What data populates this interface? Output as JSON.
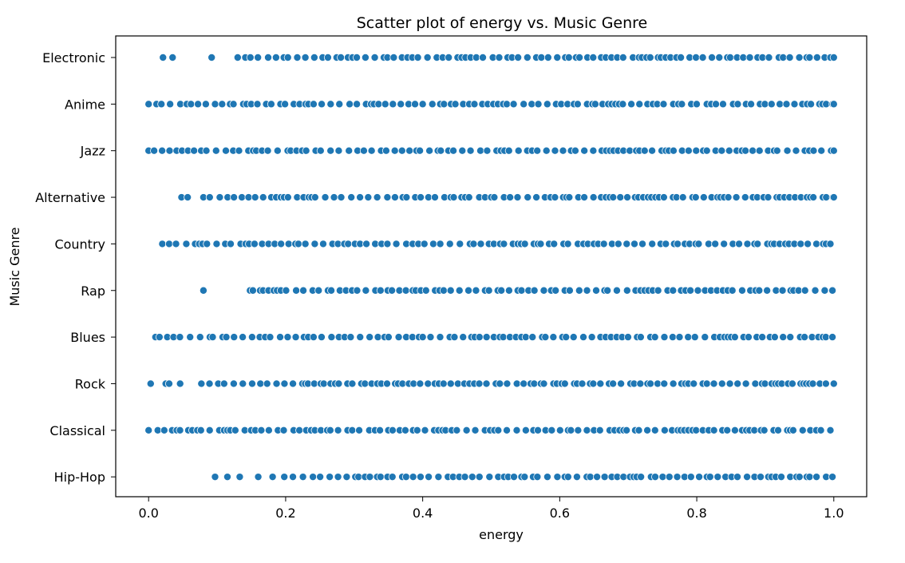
{
  "chart_data": {
    "type": "scatter",
    "title": "Scatter plot of energy vs. Music Genre",
    "xlabel": "energy",
    "ylabel": "Music Genre",
    "xlim": [
      -0.048,
      1.048
    ],
    "xticks": [
      0.0,
      0.2,
      0.4,
      0.6,
      0.8,
      1.0
    ],
    "xtick_labels": [
      "0.0",
      "0.2",
      "0.4",
      "0.6",
      "0.8",
      "1.0"
    ],
    "categories": [
      "Electronic",
      "Anime",
      "Jazz",
      "Alternative",
      "Country",
      "Rap",
      "Blues",
      "Rock",
      "Classical",
      "Hip-Hop"
    ],
    "grid": false,
    "legend": false,
    "marker_color": "#1f77b4",
    "marker_edge_color": "#ffffff",
    "series": [
      {
        "category": "Electronic",
        "outliers": [
          0.021,
          0.035,
          0.092
        ],
        "range": [
          0.13,
          1.0
        ]
      },
      {
        "category": "Anime",
        "outliers": [],
        "range": [
          0.0,
          1.0
        ]
      },
      {
        "category": "Jazz",
        "outliers": [],
        "range": [
          0.0,
          1.0
        ]
      },
      {
        "category": "Alternative",
        "outliers": [
          0.048,
          0.057
        ],
        "range": [
          0.08,
          1.0
        ]
      },
      {
        "category": "Country",
        "outliers": [
          0.02,
          0.03,
          0.04
        ],
        "range": [
          0.055,
          0.995
        ]
      },
      {
        "category": "Rap",
        "outliers": [
          0.08
        ],
        "range": [
          0.148,
          0.998
        ]
      },
      {
        "category": "Blues",
        "outliers": [],
        "range": [
          0.01,
          0.998
        ]
      },
      {
        "category": "Rock",
        "outliers": [
          0.003,
          0.025,
          0.03,
          0.046
        ],
        "range": [
          0.077,
          1.0
        ]
      },
      {
        "category": "Classical",
        "outliers": [],
        "range": [
          0.0,
          0.995
        ]
      },
      {
        "category": "Hip-Hop",
        "outliers": [
          0.097,
          0.115,
          0.133,
          0.16,
          0.181
        ],
        "range": [
          0.198,
          0.998
        ]
      }
    ]
  }
}
